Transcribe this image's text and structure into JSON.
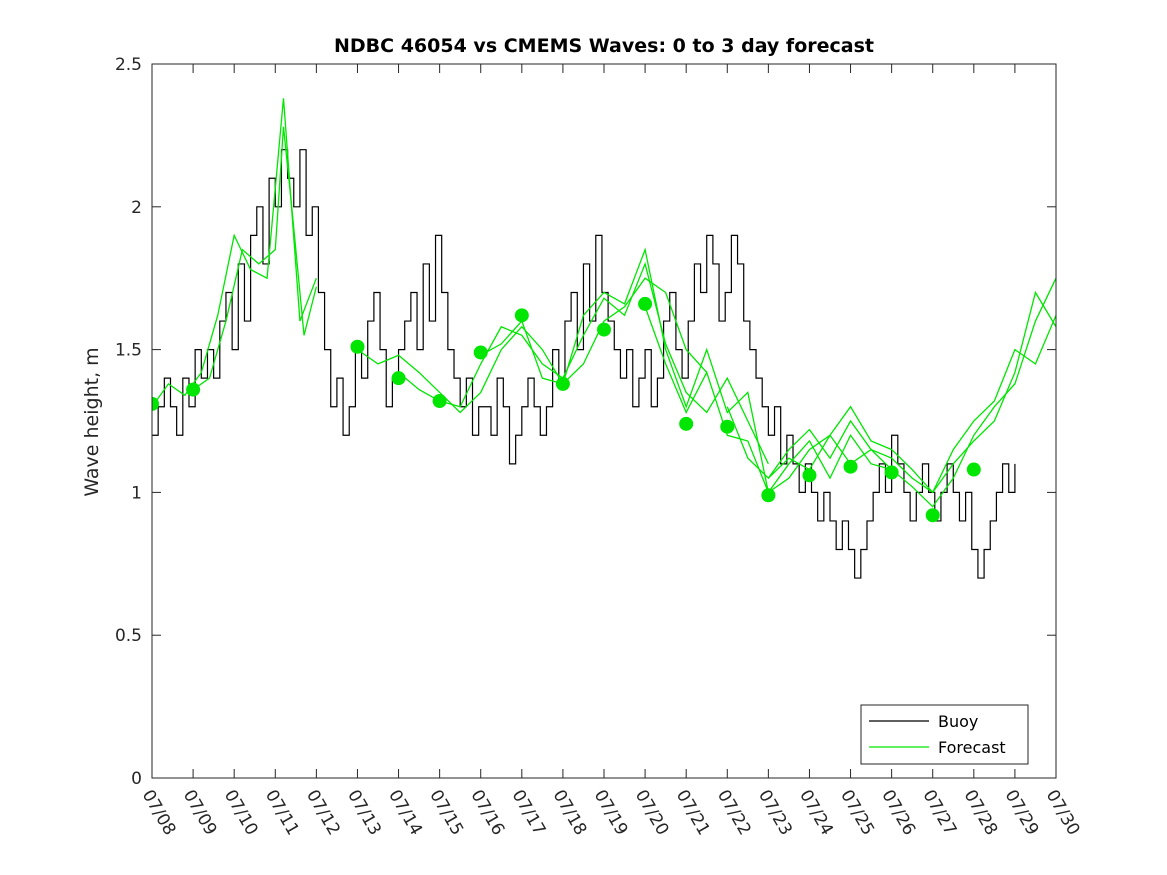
{
  "chart_data": {
    "type": "line",
    "title": "NDBC 46054 vs CMEMS Waves: 0 to 3 day forecast",
    "xlabel": "",
    "ylabel": "Wave height, m",
    "xlim": [
      0,
      22
    ],
    "ylim": [
      0,
      2.5
    ],
    "grid": false,
    "legend_position": "bottom-right",
    "x_tick_labels": [
      "07/08",
      "07/09",
      "07/10",
      "07/11",
      "07/12",
      "07/13",
      "07/14",
      "07/15",
      "07/16",
      "07/17",
      "07/18",
      "07/19",
      "07/20",
      "07/21",
      "07/22",
      "07/23",
      "07/24",
      "07/25",
      "07/26",
      "07/27",
      "07/28",
      "07/29",
      "07/30"
    ],
    "y_ticks": [
      0,
      0.5,
      1,
      1.5,
      2,
      2.5
    ],
    "y_tick_labels": [
      "0",
      "0.5",
      "1",
      "1.5",
      "2",
      "2.5"
    ],
    "colors": {
      "buoy": "#000000",
      "forecast": "#00e600"
    },
    "series": [
      {
        "name": "Buoy",
        "x_unit": "days since 07/08",
        "x": [
          0,
          0.15,
          0.3,
          0.45,
          0.6,
          0.75,
          0.9,
          1.05,
          1.2,
          1.35,
          1.5,
          1.65,
          1.8,
          1.95,
          2.1,
          2.25,
          2.4,
          2.55,
          2.7,
          2.85,
          3.0,
          3.15,
          3.3,
          3.45,
          3.6,
          3.75,
          3.9,
          4.05,
          4.2,
          4.35,
          4.5,
          4.65,
          4.8,
          4.95,
          5.1,
          5.25,
          5.4,
          5.55,
          5.7,
          5.85,
          6.0,
          6.15,
          6.3,
          6.45,
          6.6,
          6.75,
          6.9,
          7.05,
          7.2,
          7.35,
          7.5,
          7.65,
          7.8,
          7.95,
          8.1,
          8.25,
          8.4,
          8.55,
          8.7,
          8.85,
          9.0,
          9.15,
          9.3,
          9.45,
          9.6,
          9.75,
          9.9,
          10.05,
          10.2,
          10.35,
          10.5,
          10.65,
          10.8,
          10.95,
          11.1,
          11.25,
          11.4,
          11.55,
          11.7,
          11.85,
          12.0,
          12.15,
          12.3,
          12.45,
          12.6,
          12.75,
          12.9,
          13.05,
          13.2,
          13.35,
          13.5,
          13.65,
          13.8,
          13.95,
          14.1,
          14.25,
          14.4,
          14.55,
          14.7,
          14.85,
          15.0,
          15.15,
          15.3,
          15.45,
          15.6,
          15.75,
          15.9,
          16.05,
          16.2,
          16.35,
          16.5,
          16.65,
          16.8,
          16.95,
          17.1,
          17.25,
          17.4,
          17.55,
          17.7,
          17.85,
          18.0,
          18.15,
          18.3,
          18.45,
          18.6,
          18.75,
          18.9,
          19.05,
          19.2,
          19.35,
          19.5,
          19.65,
          19.8,
          19.95,
          20.1,
          20.25,
          20.4,
          20.55,
          20.7,
          20.85,
          21.0
        ],
        "y": [
          1.2,
          1.3,
          1.4,
          1.3,
          1.2,
          1.4,
          1.3,
          1.5,
          1.4,
          1.5,
          1.4,
          1.6,
          1.7,
          1.5,
          1.8,
          1.6,
          1.9,
          2.0,
          1.8,
          2.1,
          2.0,
          2.2,
          2.1,
          2.0,
          2.2,
          1.9,
          2.0,
          1.7,
          1.5,
          1.3,
          1.4,
          1.2,
          1.3,
          1.5,
          1.4,
          1.6,
          1.7,
          1.5,
          1.3,
          1.4,
          1.5,
          1.6,
          1.7,
          1.5,
          1.8,
          1.6,
          1.9,
          1.7,
          1.5,
          1.4,
          1.3,
          1.4,
          1.2,
          1.3,
          1.3,
          1.2,
          1.4,
          1.3,
          1.1,
          1.2,
          1.3,
          1.4,
          1.3,
          1.2,
          1.3,
          1.5,
          1.4,
          1.6,
          1.7,
          1.5,
          1.8,
          1.6,
          1.9,
          1.7,
          1.6,
          1.5,
          1.4,
          1.5,
          1.3,
          1.4,
          1.5,
          1.3,
          1.4,
          1.6,
          1.7,
          1.5,
          1.4,
          1.6,
          1.8,
          1.7,
          1.9,
          1.8,
          1.6,
          1.7,
          1.9,
          1.8,
          1.6,
          1.5,
          1.4,
          1.3,
          1.2,
          1.3,
          1.1,
          1.2,
          1.1,
          1.0,
          1.1,
          1.0,
          0.9,
          1.0,
          0.9,
          0.8,
          0.9,
          0.8,
          0.7,
          0.8,
          0.9,
          1.0,
          1.1,
          1.0,
          1.2,
          1.1,
          1.0,
          0.9,
          1.0,
          1.1,
          1.0,
          0.9,
          1.0,
          1.1,
          1.0,
          0.9,
          1.0,
          0.8,
          0.7,
          0.8,
          0.9,
          1.0,
          1.1,
          1.0,
          1.1
        ]
      },
      {
        "name": "Forecast",
        "runs": [
          {
            "x": [
              0,
              0.4,
              0.8,
              1.2,
              1.6,
              2.0,
              2.4,
              2.8,
              3.2,
              3.6,
              4.0
            ],
            "y": [
              1.3,
              1.38,
              1.34,
              1.42,
              1.62,
              1.9,
              1.78,
              1.75,
              2.38,
              1.6,
              1.75
            ]
          },
          {
            "x": [
              1.0,
              1.4,
              1.8,
              2.2,
              2.6,
              3.0,
              3.2,
              3.4,
              3.7,
              4.0
            ],
            "y": [
              1.36,
              1.4,
              1.6,
              1.85,
              1.8,
              1.85,
              2.28,
              2.0,
              1.55,
              1.72
            ]
          },
          {
            "x": [
              5.0,
              5.5,
              6.0,
              6.5,
              7.0,
              7.5,
              8.0,
              8.5,
              9.0,
              9.5,
              10.0,
              10.5,
              11.0,
              11.5,
              12.0,
              12.5,
              13.0,
              13.5
            ],
            "y": [
              1.5,
              1.45,
              1.48,
              1.42,
              1.35,
              1.28,
              1.35,
              1.5,
              1.58,
              1.5,
              1.38,
              1.45,
              1.6,
              1.65,
              1.75,
              1.7,
              1.5,
              1.42
            ]
          },
          {
            "x": [
              6.0,
              6.5,
              7.0,
              7.5,
              8.0,
              8.5,
              9.0,
              9.5,
              10.0,
              10.5,
              11.0,
              11.5,
              12.0,
              12.5,
              13.0,
              13.5,
              14.0,
              14.5,
              15.0
            ],
            "y": [
              1.42,
              1.36,
              1.32,
              1.3,
              1.45,
              1.58,
              1.55,
              1.45,
              1.4,
              1.55,
              1.68,
              1.62,
              1.8,
              1.52,
              1.35,
              1.28,
              1.4,
              1.25,
              1.1
            ]
          },
          {
            "x": [
              8.0,
              8.5,
              9.0,
              9.5,
              10.0,
              10.5,
              11.0,
              11.5,
              12.0,
              12.5,
              13.0,
              13.5,
              14.0,
              14.5,
              15.0,
              15.5,
              16.0,
              16.5,
              17.0,
              17.5,
              18.0
            ],
            "y": [
              1.48,
              1.52,
              1.6,
              1.4,
              1.38,
              1.62,
              1.7,
              1.66,
              1.85,
              1.5,
              1.3,
              1.5,
              1.28,
              1.35,
              1.0,
              1.05,
              1.15,
              1.2,
              1.1,
              1.15,
              1.08
            ]
          },
          {
            "x": [
              12.0,
              12.5,
              13.0,
              13.5,
              14.0,
              14.5,
              15.0,
              15.5,
              16.0,
              16.5,
              17.0,
              17.5,
              18.0,
              18.5,
              19.0,
              19.5,
              20.0,
              20.5,
              21.0,
              21.5,
              22.0
            ],
            "y": [
              1.65,
              1.45,
              1.28,
              1.42,
              1.2,
              1.18,
              1.0,
              1.1,
              1.18,
              1.05,
              1.2,
              1.1,
              1.08,
              1.02,
              0.95,
              1.05,
              1.2,
              1.3,
              1.38,
              1.6,
              1.75
            ]
          },
          {
            "x": [
              14.0,
              14.5,
              15.0,
              15.5,
              16.0,
              16.5,
              17.0,
              17.5,
              18.0,
              18.5,
              19.0,
              19.5,
              20.0,
              20.5,
              21.0,
              21.5,
              22.0
            ],
            "y": [
              1.3,
              1.12,
              1.05,
              1.15,
              1.22,
              1.12,
              1.25,
              1.15,
              1.12,
              1.05,
              1.0,
              1.15,
              1.25,
              1.32,
              1.5,
              1.45,
              1.62
            ]
          },
          {
            "x": [
              15.0,
              15.5,
              16.0,
              16.5,
              17.0,
              17.5,
              18.0,
              18.5,
              19.0,
              19.5,
              20.0,
              20.5,
              21.0,
              21.5,
              22.0
            ],
            "y": [
              1.05,
              1.12,
              1.08,
              1.2,
              1.3,
              1.18,
              1.15,
              1.08,
              1.0,
              1.1,
              1.18,
              1.25,
              1.42,
              1.7,
              1.58
            ]
          }
        ]
      },
      {
        "name": "",
        "type": "scatter",
        "x": [
          0,
          1,
          5,
          6,
          7,
          8,
          9,
          10,
          11,
          12,
          13,
          14,
          15,
          16,
          17,
          18,
          19,
          20
        ],
        "y": [
          1.31,
          1.36,
          1.51,
          1.4,
          1.32,
          1.49,
          1.62,
          1.38,
          1.57,
          1.66,
          1.24,
          1.23,
          0.99,
          1.06,
          1.09,
          1.07,
          0.92,
          1.08
        ]
      }
    ],
    "legend": [
      {
        "label": "Buoy",
        "color": "#000000"
      },
      {
        "label": "Forecast",
        "color": "#00e600"
      }
    ]
  }
}
